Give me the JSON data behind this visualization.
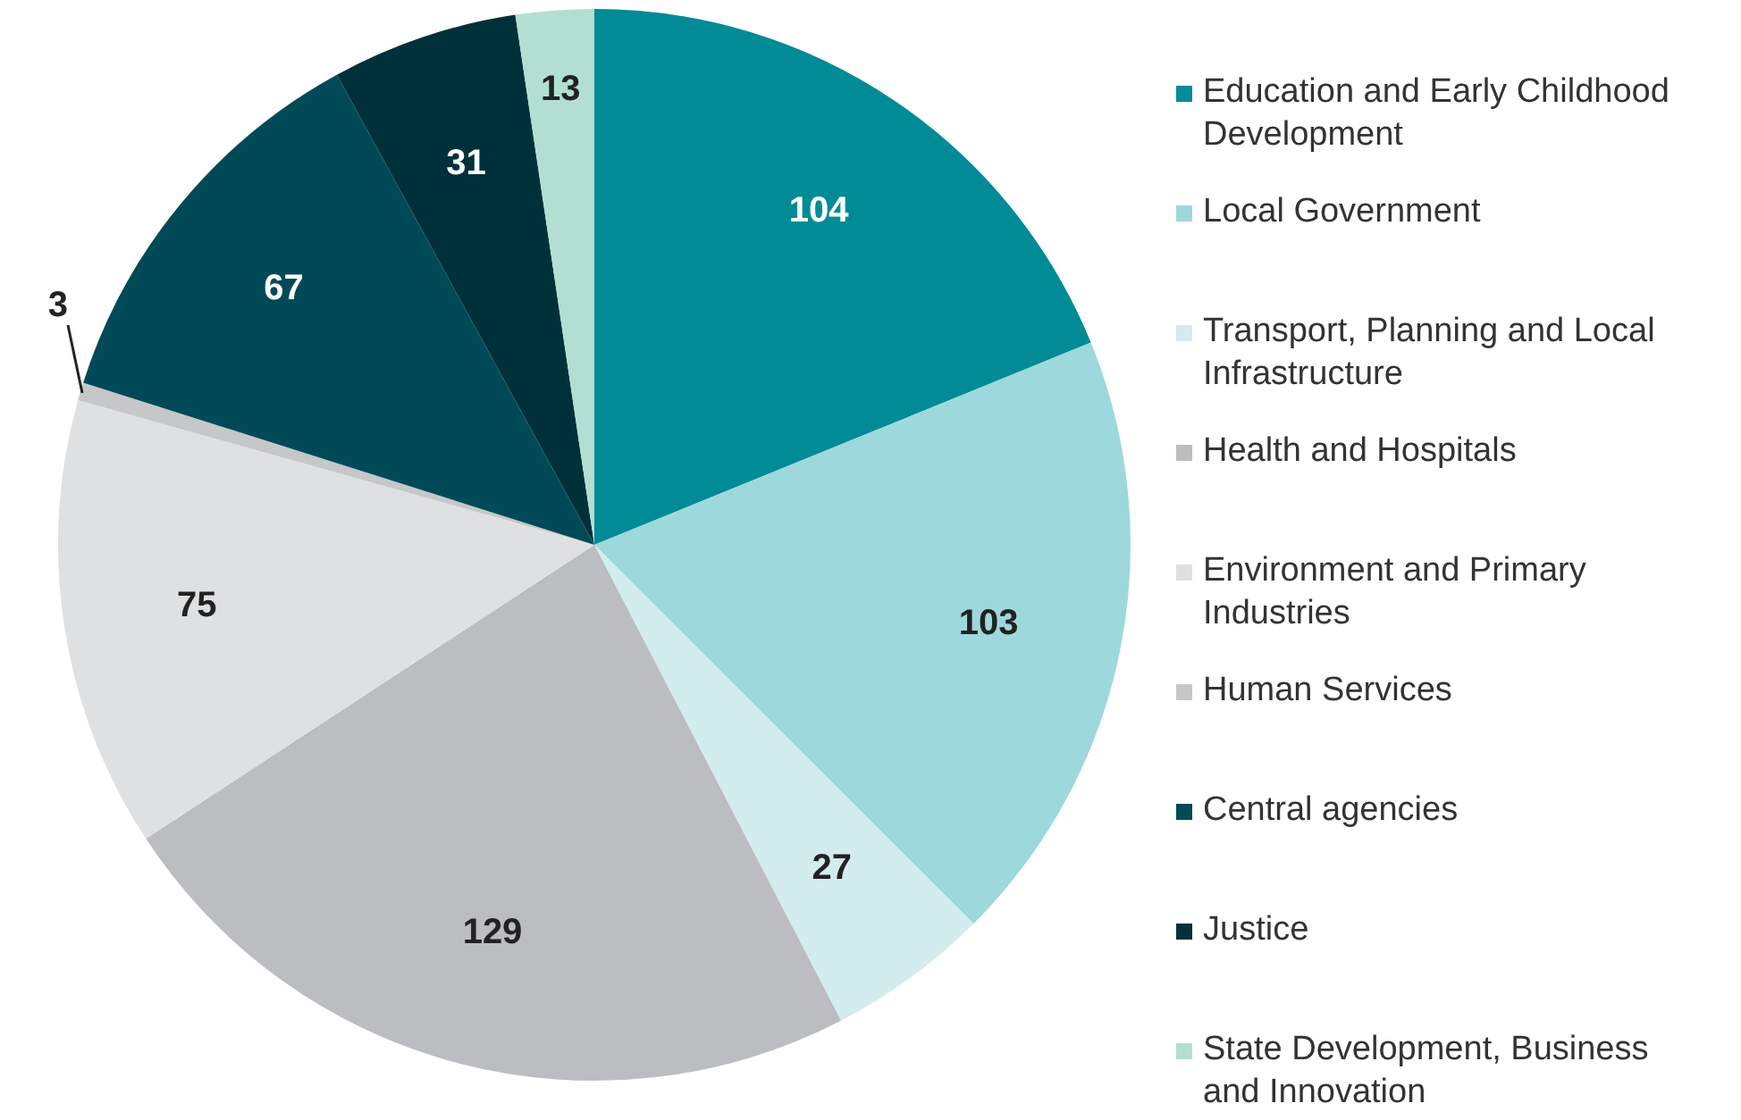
{
  "chart_data": {
    "type": "pie",
    "categories": [
      "Education and Early Childhood Development",
      "Local Government",
      "Transport, Planning and Local Infrastructure",
      "Health and Hospitals",
      "Environment and Primary Industries",
      "Human Services",
      "Central agencies",
      "Justice",
      "State Development, Business and Innovation"
    ],
    "values": [
      104,
      103,
      27,
      129,
      75,
      3,
      67,
      31,
      13
    ],
    "colors": [
      "#008b96",
      "#9dd8dc",
      "#d3eced",
      "#bcbdc0",
      "#dfe0e2",
      "#c6c7c9",
      "#004a57",
      "#00313a",
      "#b3dfd2"
    ],
    "data_labels": true,
    "legend": "right"
  }
}
